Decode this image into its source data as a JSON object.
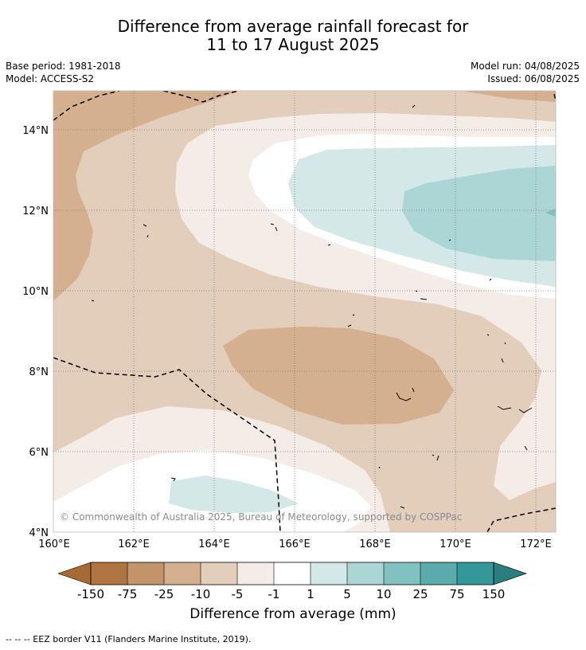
{
  "title": {
    "line1": "Difference from average rainfall forecast for",
    "line2": "11 to 17 August 2025"
  },
  "meta": {
    "base_period": "Base period: 1981-2018",
    "model": "Model: ACCESS-S2",
    "model_run": "Model run: 04/08/2025",
    "issued": "Issued: 06/08/2025"
  },
  "map": {
    "lat_labels": [
      "14°N",
      "12°N",
      "10°N",
      "8°N",
      "6°N",
      "4°N"
    ],
    "lon_labels": [
      "160°E",
      "162°E",
      "164°E",
      "166°E",
      "168°E",
      "170°E",
      "172°E"
    ],
    "copyright": "© Commonwealth of Australia 2025, Bureau of Meteorology, supported by COSPPac"
  },
  "legend": {
    "ticks": [
      "-150",
      "-75",
      "-25",
      "-10",
      "-5",
      "-1",
      "1",
      "5",
      "10",
      "25",
      "75",
      "150"
    ],
    "colors": {
      "lt150": "#a86a34",
      "m150_75": "#b07540",
      "m75_25": "#c39468",
      "m25_10": "#d4b08f",
      "m10_5": "#e3cdbb",
      "m5_1": "#f4ece7",
      "m1_1": "#ffffff",
      "p1_5": "#d4e8e8",
      "p5_10": "#acd6d6",
      "p10_25": "#82c1c1",
      "p25_75": "#5aabab",
      "p75_150": "#349898",
      "gt150": "#2a7e7e"
    },
    "title": "Difference from average (mm)"
  },
  "footnote": "--  --  -- EEZ border V11 (Flanders Marine Institute, 2019)."
}
